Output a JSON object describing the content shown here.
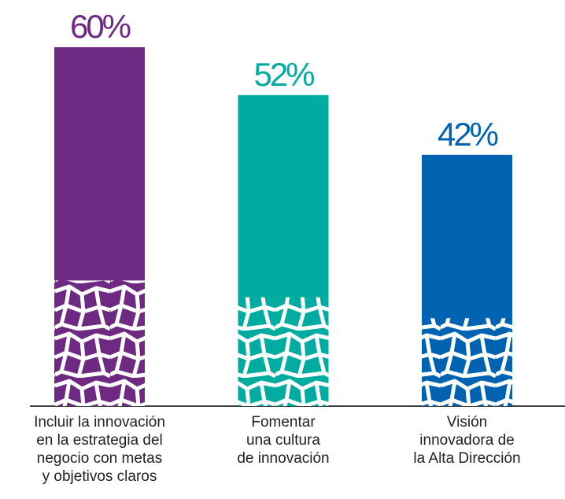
{
  "chart_data": {
    "type": "bar",
    "categories": [
      "Incluir la innovación\nen la estrategia del\nnegocio con metas\ny objetivos claros",
      "Fomentar\nuna cultura\nde innovación",
      "Visión\ninnovadora de\nla Alta Dirección"
    ],
    "values": [
      60,
      52,
      42
    ],
    "value_labels": [
      "60%",
      "52%",
      "42%"
    ],
    "colors": [
      "#6e2a82",
      "#00aca0",
      "#0063b1"
    ]
  }
}
